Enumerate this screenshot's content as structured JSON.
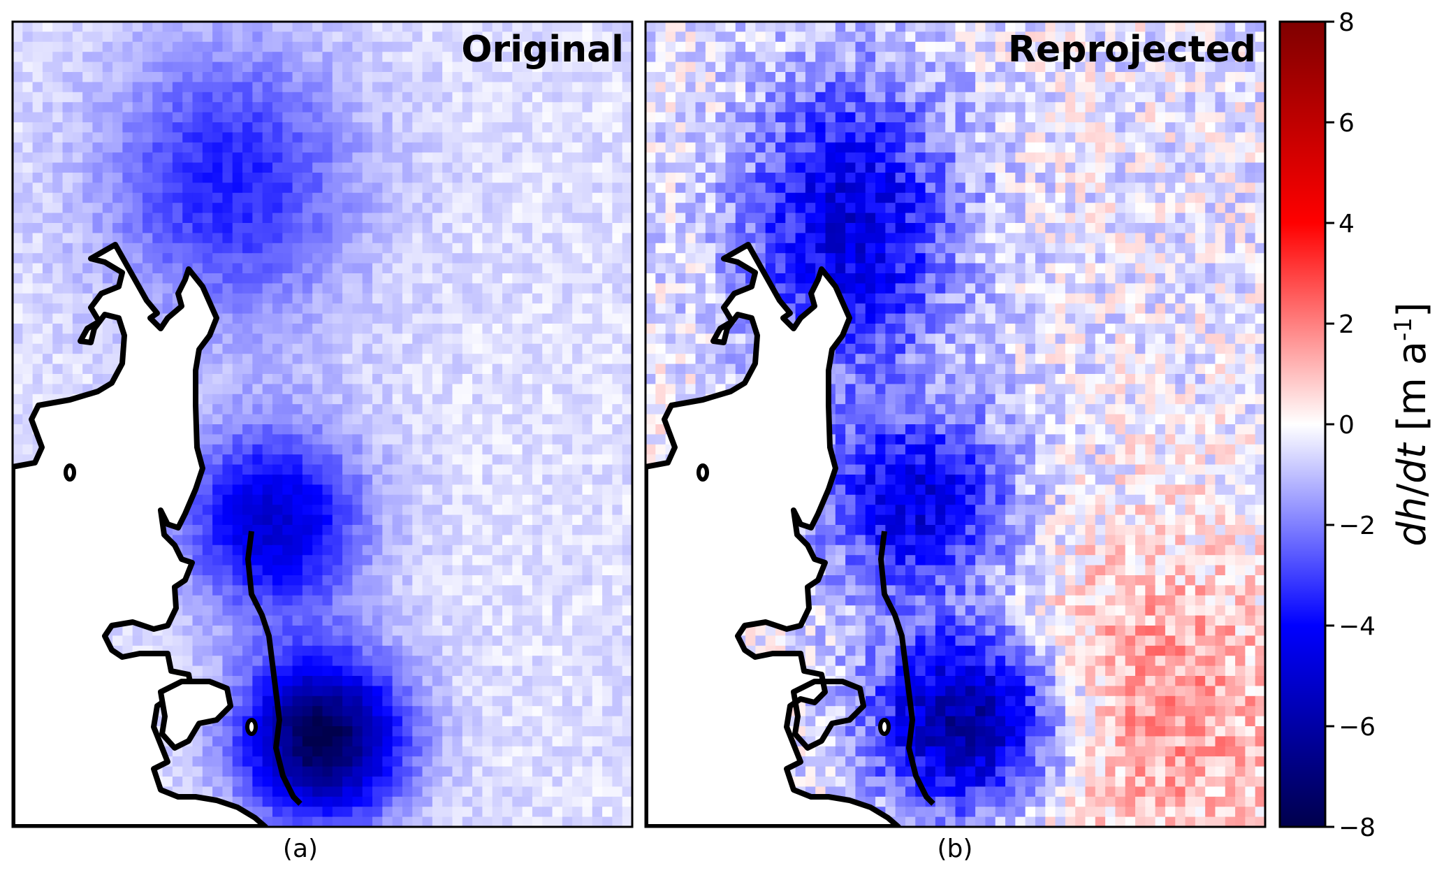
{
  "chart_data": [
    {
      "type": "heatmap",
      "title": "Original",
      "panel_label": "(a)",
      "colormap": "seismic",
      "value_range": [
        -8,
        8
      ],
      "outline_color": "#000000",
      "grid": false,
      "hotspots": [
        {
          "location": "north-central",
          "peak_value": -3.0
        },
        {
          "location": "center-left near coast",
          "peak_value": -4.5
        },
        {
          "location": "south-center near coast",
          "peak_value": -7.5
        }
      ]
    },
    {
      "type": "heatmap",
      "title": "Reprojected",
      "panel_label": "(b)",
      "colormap": "seismic",
      "value_range": [
        -8,
        8
      ],
      "outline_color": "#000000",
      "grid": false,
      "hotspots": [
        {
          "location": "north-central",
          "peak_value": -4.5
        },
        {
          "location": "center-left near coast",
          "peak_value": -4.5
        },
        {
          "location": "south-center near coast",
          "peak_value": -6.5
        },
        {
          "location": "east and south-east",
          "peak_value": 2.0
        }
      ]
    },
    {
      "type": "colorbar",
      "label_main": "dh/dt [m a",
      "label_sup": "-1",
      "label_end": "]",
      "range": [
        -8,
        8
      ],
      "ticks": [
        8,
        6,
        4,
        2,
        0,
        -2,
        -4,
        -6,
        -8
      ],
      "tick_labels": [
        "8",
        "6",
        "4",
        "2",
        "0",
        "−2",
        "−4",
        "−6",
        "−8"
      ]
    }
  ]
}
